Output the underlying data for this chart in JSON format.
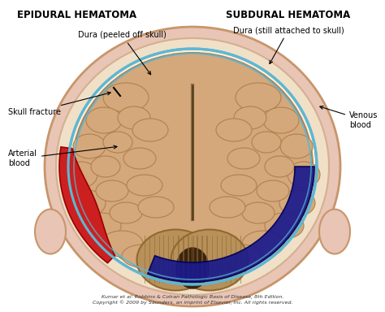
{
  "title_left": "EPIDURAL HEMATOMA",
  "title_right": "SUBDURAL HEMATOMA",
  "bg_color": "#ffffff",
  "skin_color": "#e8c5b5",
  "skin_edge_color": "#c8956a",
  "skull_color": "#f0e0c8",
  "skull_edge_color": "#d4b090",
  "inner_color": "#faf0e0",
  "brain_color": "#d4a87a",
  "brain_edge_color": "#b08050",
  "dura_line_color": "#5bb8d4",
  "epidural_color": "#cc2020",
  "epidural_edge": "#990000",
  "subdural_color": "#1a1a8c",
  "subdural_edge": "#000055",
  "cerebellum_color": "#b8905a",
  "cerebellum_stripe": "#906830",
  "falx_color": "#c0a888",
  "caption": "Kumar et al: Robbins & Cotran Pathologic Basis of Disease, 8th Edition.\nCopyright © 2009 by Saunders, an imprint of Elsevier, Inc. All rights reserved.",
  "label_dura_left": "Dura (peeled off skull)",
  "label_dura_right": "Dura (still attached to skull)",
  "label_skull_fx": "Skull fracture",
  "label_arterial": "Arterial\nblood",
  "label_venous": "Venous\nblood"
}
